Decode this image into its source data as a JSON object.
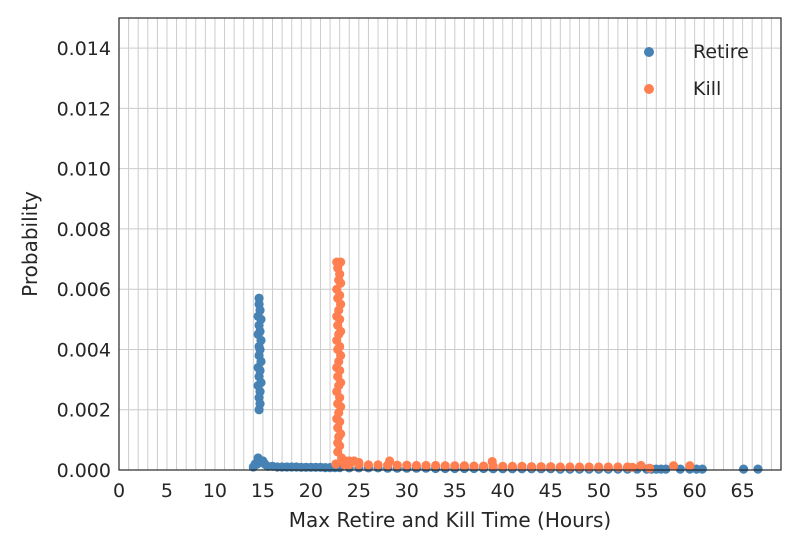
{
  "chart_data": {
    "type": "scatter",
    "title": "",
    "xlabel": "Max Retire and Kill Time (Hours)",
    "ylabel": "Probability",
    "xlim": [
      0,
      69
    ],
    "ylim": [
      0,
      0.015
    ],
    "x_ticks": [
      "0",
      "5",
      "10",
      "15",
      "20",
      "25",
      "30",
      "35",
      "40",
      "45",
      "50",
      "55",
      "60",
      "65"
    ],
    "y_ticks": [
      "0.000",
      "0.002",
      "0.004",
      "0.006",
      "0.008",
      "0.010",
      "0.012",
      "0.014"
    ],
    "grid": true,
    "minor_x_grid_step": 1,
    "legend_position": "top-right",
    "series": [
      {
        "name": "Retire",
        "color": "#4682b4",
        "points": [
          [
            14.6,
            0.0057
          ],
          [
            14.6,
            0.0055
          ],
          [
            14.7,
            0.0053
          ],
          [
            14.5,
            0.0051
          ],
          [
            14.8,
            0.005
          ],
          [
            14.6,
            0.0048
          ],
          [
            14.7,
            0.0046
          ],
          [
            14.5,
            0.0045
          ],
          [
            14.8,
            0.0043
          ],
          [
            14.6,
            0.0041
          ],
          [
            14.7,
            0.004
          ],
          [
            14.6,
            0.0038
          ],
          [
            14.8,
            0.0036
          ],
          [
            14.5,
            0.0034
          ],
          [
            14.7,
            0.0033
          ],
          [
            14.6,
            0.0031
          ],
          [
            14.8,
            0.0029
          ],
          [
            14.5,
            0.0028
          ],
          [
            14.7,
            0.0026
          ],
          [
            14.6,
            0.0024
          ],
          [
            14.7,
            0.0022
          ],
          [
            14.6,
            0.002
          ],
          [
            14.5,
            0.0004
          ],
          [
            14.6,
            0.0003
          ],
          [
            14.8,
            0.0003
          ],
          [
            15.0,
            0.0003
          ],
          [
            14.4,
            0.0002
          ],
          [
            14.0,
            0.0001
          ],
          [
            14.2,
            0.0002
          ],
          [
            15.2,
            0.0002
          ],
          [
            15.5,
            0.00012
          ],
          [
            16,
            0.00012
          ],
          [
            16.5,
            0.0001
          ],
          [
            17,
            0.0001
          ],
          [
            17.5,
            0.0001
          ],
          [
            18,
            0.0001
          ],
          [
            18.5,
            0.0001
          ],
          [
            19,
            9e-05
          ],
          [
            19.5,
            9e-05
          ],
          [
            20,
            9e-05
          ],
          [
            20.5,
            9e-05
          ],
          [
            21,
            9e-05
          ],
          [
            21.5,
            8e-05
          ],
          [
            22,
            8e-05
          ],
          [
            22.5,
            8e-05
          ],
          [
            23,
            8e-05
          ],
          [
            24,
            7e-05
          ],
          [
            25,
            7e-05
          ],
          [
            26,
            7e-05
          ],
          [
            27,
            7e-05
          ],
          [
            28,
            6e-05
          ],
          [
            29,
            6e-05
          ],
          [
            30,
            6e-05
          ],
          [
            31,
            6e-05
          ],
          [
            32,
            6e-05
          ],
          [
            33,
            5e-05
          ],
          [
            34,
            5e-05
          ],
          [
            35,
            5e-05
          ],
          [
            36,
            5e-05
          ],
          [
            37,
            5e-05
          ],
          [
            38,
            5e-05
          ],
          [
            39,
            4e-05
          ],
          [
            40,
            4e-05
          ],
          [
            41,
            4e-05
          ],
          [
            42,
            4e-05
          ],
          [
            43,
            4e-05
          ],
          [
            44,
            4e-05
          ],
          [
            45,
            4e-05
          ],
          [
            46,
            3e-05
          ],
          [
            47,
            3e-05
          ],
          [
            48,
            3e-05
          ],
          [
            49,
            3e-05
          ],
          [
            50,
            3e-05
          ],
          [
            51,
            3e-05
          ],
          [
            52,
            3e-05
          ],
          [
            53,
            3e-05
          ],
          [
            54,
            3e-05
          ],
          [
            55,
            3e-05
          ],
          [
            55.5,
            3e-05
          ],
          [
            56,
            3e-05
          ],
          [
            56.5,
            3e-05
          ],
          [
            57,
            3e-05
          ],
          [
            58.5,
            3e-05
          ],
          [
            59.5,
            3e-05
          ],
          [
            60.2,
            3e-05
          ],
          [
            60.8,
            3e-05
          ],
          [
            65.1,
            3e-05
          ],
          [
            66.6,
            3e-05
          ]
        ]
      },
      {
        "name": "Kill",
        "color": "#ff7f50",
        "points": [
          [
            22.7,
            0.0069
          ],
          [
            23.1,
            0.0069
          ],
          [
            22.8,
            0.0067
          ],
          [
            23.0,
            0.0065
          ],
          [
            22.9,
            0.0063
          ],
          [
            23.1,
            0.0062
          ],
          [
            22.7,
            0.006
          ],
          [
            23.0,
            0.0058
          ],
          [
            22.8,
            0.0057
          ],
          [
            23.1,
            0.0055
          ],
          [
            22.9,
            0.0053
          ],
          [
            22.7,
            0.0051
          ],
          [
            23.0,
            0.005
          ],
          [
            22.8,
            0.0048
          ],
          [
            23.1,
            0.0046
          ],
          [
            22.9,
            0.0045
          ],
          [
            22.7,
            0.0043
          ],
          [
            23.0,
            0.0041
          ],
          [
            22.8,
            0.004
          ],
          [
            23.1,
            0.0038
          ],
          [
            22.9,
            0.0036
          ],
          [
            22.7,
            0.0034
          ],
          [
            23.0,
            0.0033
          ],
          [
            22.8,
            0.0031
          ],
          [
            23.1,
            0.0029
          ],
          [
            22.9,
            0.0028
          ],
          [
            22.7,
            0.0026
          ],
          [
            23.0,
            0.0024
          ],
          [
            22.8,
            0.0022
          ],
          [
            23.1,
            0.0021
          ],
          [
            22.9,
            0.0019
          ],
          [
            22.7,
            0.0017
          ],
          [
            23.0,
            0.0016
          ],
          [
            22.8,
            0.0014
          ],
          [
            23.1,
            0.0012
          ],
          [
            22.9,
            0.0011
          ],
          [
            22.8,
            0.0009
          ],
          [
            23.0,
            0.0008
          ],
          [
            22.8,
            0.0006
          ],
          [
            23.2,
            0.0004
          ],
          [
            22.6,
            0.0002
          ],
          [
            23.6,
            0.0003
          ],
          [
            24.0,
            0.0003
          ],
          [
            24.5,
            0.0003
          ],
          [
            25.0,
            0.00025
          ],
          [
            28.2,
            0.0003
          ],
          [
            23.5,
            0.00018
          ],
          [
            24,
            0.00018
          ],
          [
            25,
            0.00018
          ],
          [
            26,
            0.00017
          ],
          [
            27,
            0.00017
          ],
          [
            28,
            0.00016
          ],
          [
            29,
            0.00016
          ],
          [
            30,
            0.00016
          ],
          [
            31,
            0.00015
          ],
          [
            32,
            0.00015
          ],
          [
            33,
            0.00015
          ],
          [
            34,
            0.00014
          ],
          [
            35,
            0.00014
          ],
          [
            36,
            0.00014
          ],
          [
            37,
            0.00013
          ],
          [
            38,
            0.00013
          ],
          [
            38.9,
            0.00028
          ],
          [
            39,
            0.00013
          ],
          [
            40,
            0.00012
          ],
          [
            41,
            0.00012
          ],
          [
            42,
            0.00012
          ],
          [
            43,
            0.00011
          ],
          [
            44,
            0.00011
          ],
          [
            45,
            0.00011
          ],
          [
            46,
            0.0001
          ],
          [
            47,
            0.0001
          ],
          [
            48,
            0.0001
          ],
          [
            49,
            0.0001
          ],
          [
            50,
            0.0001
          ],
          [
            51,
            0.0001
          ],
          [
            52,
            0.0001
          ],
          [
            53,
            0.0001
          ],
          [
            53.5,
            9e-05
          ],
          [
            54.4,
            0.00015
          ],
          [
            55.3,
            6e-05
          ],
          [
            57.8,
            0.00014
          ],
          [
            59.5,
            0.00014
          ]
        ]
      }
    ]
  }
}
